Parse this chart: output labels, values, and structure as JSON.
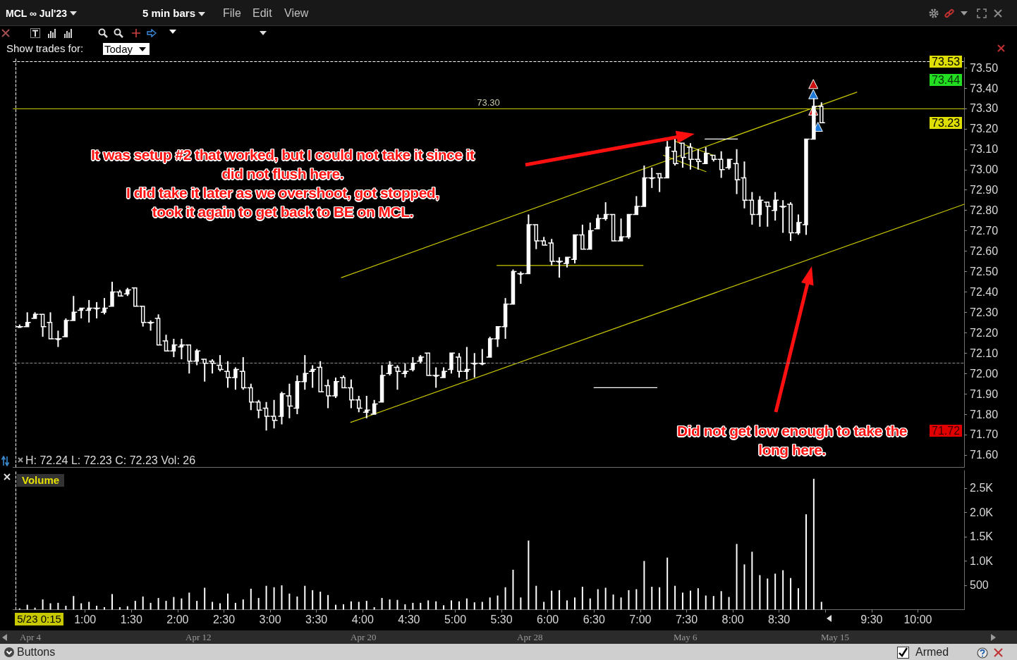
{
  "chart_data": [
    {
      "type": "candlestick",
      "title": "MCL ∞ Jul'23",
      "subtitle": "5 min bars",
      "x": [
        0.292,
        0.375,
        0.458,
        0.542,
        0.625,
        0.708,
        0.792,
        0.875,
        0.958,
        1.042,
        1.125,
        1.208,
        1.292,
        1.375,
        1.458,
        1.542,
        1.625,
        1.708,
        1.792,
        1.875,
        1.958,
        2.042,
        2.125,
        2.208,
        2.292,
        2.375,
        2.458,
        2.542,
        2.625,
        2.708,
        2.792,
        2.875,
        2.958,
        3.042,
        3.125,
        3.208,
        3.292,
        3.375,
        3.458,
        3.542,
        3.625,
        3.708,
        3.792,
        3.875,
        3.958,
        4.042,
        4.125,
        4.208,
        4.292,
        4.375,
        4.458,
        4.542,
        4.625,
        4.708,
        4.792,
        4.875,
        4.958,
        5.042,
        5.125,
        5.208,
        5.292,
        5.375,
        5.458,
        5.542,
        5.625,
        5.708,
        5.792,
        5.875,
        5.958,
        6.042,
        6.125,
        6.208,
        6.292,
        6.375,
        6.458,
        6.542,
        6.625,
        6.708,
        6.792,
        6.875,
        6.958,
        7.042,
        7.125,
        7.208,
        7.292,
        7.375,
        7.458,
        7.542,
        7.625,
        7.708,
        7.792,
        7.875,
        7.958,
        8.042,
        8.125,
        8.208,
        8.292,
        8.375,
        8.458,
        8.542,
        8.625,
        8.708,
        8.792,
        8.875,
        8.958
      ],
      "ohlc": [
        [
          72.23,
          72.24,
          72.23,
          72.23
        ],
        [
          72.23,
          72.3,
          72.23,
          72.25
        ],
        [
          72.27,
          72.3,
          72.27,
          72.29
        ],
        [
          72.29,
          72.29,
          72.18,
          72.23
        ],
        [
          72.25,
          72.3,
          72.17,
          72.17
        ],
        [
          72.17,
          72.21,
          72.13,
          72.17
        ],
        [
          72.18,
          72.27,
          72.18,
          72.26
        ],
        [
          72.26,
          72.38,
          72.26,
          72.3
        ],
        [
          72.31,
          72.32,
          72.27,
          72.32
        ],
        [
          72.31,
          72.36,
          72.25,
          72.32
        ],
        [
          72.32,
          72.35,
          72.27,
          72.32
        ],
        [
          72.3,
          72.37,
          72.29,
          72.32
        ],
        [
          72.33,
          72.45,
          72.33,
          72.4
        ],
        [
          72.4,
          72.41,
          72.38,
          72.38
        ],
        [
          72.39,
          72.42,
          72.38,
          72.41
        ],
        [
          72.42,
          72.42,
          72.33,
          72.33
        ],
        [
          72.33,
          72.33,
          72.23,
          72.25
        ],
        [
          72.25,
          72.26,
          72.21,
          72.25
        ],
        [
          72.27,
          72.29,
          72.14,
          72.14
        ],
        [
          72.16,
          72.19,
          72.11,
          72.11
        ],
        [
          72.11,
          72.17,
          72.08,
          72.14
        ],
        [
          72.13,
          72.17,
          72.07,
          72.14
        ],
        [
          72.14,
          72.14,
          72.0,
          72.06
        ],
        [
          72.06,
          72.12,
          72.04,
          72.11
        ],
        [
          72.07,
          72.07,
          71.96,
          72.05
        ],
        [
          72.06,
          72.07,
          72.0,
          72.05
        ],
        [
          72.04,
          72.09,
          72.01,
          72.02
        ],
        [
          72.01,
          72.06,
          71.93,
          71.98
        ],
        [
          71.98,
          72.03,
          71.92,
          72.02
        ],
        [
          72.01,
          72.08,
          71.92,
          71.93
        ],
        [
          71.93,
          71.95,
          71.82,
          71.86
        ],
        [
          71.86,
          71.87,
          71.78,
          71.82
        ],
        [
          71.83,
          71.86,
          71.72,
          71.79
        ],
        [
          71.79,
          71.87,
          71.73,
          71.77
        ],
        [
          71.79,
          71.91,
          71.75,
          71.9
        ],
        [
          71.89,
          71.95,
          71.78,
          71.84
        ],
        [
          71.83,
          71.99,
          71.8,
          71.96
        ],
        [
          71.96,
          72.09,
          71.92,
          72.0
        ],
        [
          72.01,
          72.04,
          71.93,
          72.02
        ],
        [
          72.03,
          72.06,
          71.91,
          71.91
        ],
        [
          71.94,
          71.97,
          71.83,
          71.89
        ],
        [
          71.89,
          71.98,
          71.88,
          71.96
        ],
        [
          71.98,
          71.99,
          71.93,
          71.93
        ],
        [
          71.93,
          71.97,
          71.83,
          71.87
        ],
        [
          71.87,
          71.89,
          71.81,
          71.83
        ],
        [
          71.81,
          71.89,
          71.78,
          71.82
        ],
        [
          71.8,
          71.87,
          71.8,
          71.85
        ],
        [
          71.86,
          72.04,
          71.86,
          71.99
        ],
        [
          72.0,
          72.06,
          71.99,
          72.04
        ],
        [
          72.03,
          72.04,
          71.92,
          72.01
        ],
        [
          72.0,
          72.05,
          71.98,
          72.01
        ],
        [
          72.02,
          72.08,
          72.01,
          72.05
        ],
        [
          72.06,
          72.09,
          72.05,
          72.08
        ],
        [
          72.1,
          72.1,
          71.99,
          71.99
        ],
        [
          71.99,
          72.03,
          71.93,
          71.99
        ],
        [
          71.98,
          72.03,
          71.98,
          72.01
        ],
        [
          72.02,
          72.1,
          72.0,
          72.1
        ],
        [
          72.08,
          72.1,
          71.98,
          72.01
        ],
        [
          72.01,
          72.13,
          71.97,
          72.02
        ],
        [
          72.05,
          72.1,
          71.98,
          72.05
        ],
        [
          72.05,
          72.12,
          72.04,
          72.05
        ],
        [
          72.08,
          72.18,
          72.08,
          72.17
        ],
        [
          72.17,
          72.23,
          72.13,
          72.23
        ],
        [
          72.23,
          72.37,
          72.17,
          72.34
        ],
        [
          72.34,
          72.51,
          72.34,
          72.5
        ],
        [
          72.49,
          72.5,
          72.44,
          72.49
        ],
        [
          72.49,
          72.78,
          72.49,
          72.73
        ],
        [
          72.73,
          72.73,
          72.61,
          72.65
        ],
        [
          72.65,
          72.67,
          72.63,
          72.63
        ],
        [
          72.64,
          72.66,
          72.53,
          72.55
        ],
        [
          72.55,
          72.57,
          72.47,
          72.55
        ],
        [
          72.54,
          72.57,
          72.52,
          72.57
        ],
        [
          72.56,
          72.68,
          72.54,
          72.68
        ],
        [
          72.68,
          72.73,
          72.61,
          72.61
        ],
        [
          72.61,
          72.74,
          72.61,
          72.7
        ],
        [
          72.71,
          72.78,
          72.71,
          72.76
        ],
        [
          72.76,
          72.84,
          72.75,
          72.78
        ],
        [
          72.78,
          72.78,
          72.65,
          72.65
        ],
        [
          72.65,
          72.76,
          72.65,
          72.67
        ],
        [
          72.67,
          72.78,
          72.66,
          72.78
        ],
        [
          72.78,
          72.87,
          72.78,
          72.82
        ],
        [
          72.82,
          73.02,
          72.82,
          72.96
        ],
        [
          72.96,
          73.01,
          72.91,
          72.96
        ],
        [
          72.98,
          72.98,
          72.89,
          72.96
        ],
        [
          72.96,
          73.14,
          72.96,
          73.11
        ],
        [
          73.09,
          73.15,
          73.02,
          73.03
        ],
        [
          73.13,
          73.13,
          73.01,
          73.06
        ],
        [
          73.11,
          73.13,
          73.0,
          73.05
        ],
        [
          73.05,
          73.1,
          73.0,
          73.04
        ],
        [
          73.03,
          73.11,
          73.03,
          73.08
        ],
        [
          73.07,
          73.07,
          73.04,
          73.05
        ],
        [
          73.05,
          73.09,
          72.96,
          73.0
        ],
        [
          73.01,
          73.05,
          73.0,
          73.05
        ],
        [
          73.03,
          73.1,
          72.88,
          72.95
        ],
        [
          72.96,
          73.04,
          72.81,
          72.85
        ],
        [
          72.85,
          72.89,
          72.73,
          72.78
        ],
        [
          72.78,
          72.87,
          72.72,
          72.85
        ],
        [
          72.84,
          72.84,
          72.72,
          72.82
        ],
        [
          72.8,
          72.89,
          72.75,
          72.85
        ],
        [
          72.82,
          72.85,
          72.69,
          72.82
        ],
        [
          72.83,
          72.84,
          72.65,
          72.69
        ],
        [
          72.69,
          72.78,
          72.68,
          72.74
        ],
        [
          72.73,
          73.15,
          72.68,
          73.15
        ],
        [
          73.15,
          73.35,
          73.15,
          73.31
        ],
        [
          73.31,
          73.33,
          73.23,
          73.23
        ]
      ],
      "color": "#ffffff",
      "series": [
        {
          "type": "line",
          "x": [
            3.77,
            9.34
          ],
          "values": [
            72.47,
            73.38
          ],
          "color": "#c8c800"
        },
        {
          "type": "line",
          "x": [
            3.87,
            10.5
          ],
          "values": [
            71.76,
            72.83
          ],
          "color": "#c8c800"
        },
        {
          "type": "line",
          "x": [
            7.25,
            7.71
          ],
          "values": [
            73.07,
            72.99
          ],
          "color": "#c8c800"
        },
        {
          "type": "line",
          "x": [
            7.37,
            7.79
          ],
          "values": [
            73.14,
            73.07
          ],
          "color": "#c8c800"
        },
        {
          "type": "line",
          "x": [
            5.45,
            7.03
          ],
          "values": [
            72.53,
            72.53
          ],
          "color": "#c8c800"
        },
        {
          "type": "line",
          "x": [
            6.5,
            7.18
          ],
          "values": [
            71.93,
            71.93
          ],
          "color": "#ffffff"
        },
        {
          "type": "line",
          "x": [
            7.7,
            8.05
          ],
          "values": [
            73.15,
            73.15
          ],
          "color": "#ffffff"
        },
        {
          "type": "scatter",
          "x": [
            8.87,
            8.87
          ],
          "values": [
            73.42,
            73.29
          ],
          "color": "#cc1010",
          "marker": "triangle"
        },
        {
          "type": "scatter",
          "x": [
            8.87,
            8.92
          ],
          "values": [
            73.37,
            73.21
          ],
          "color": "#1e78d6",
          "marker": "triangle"
        }
      ],
      "xlim": [
        0.22,
        10.5
      ],
      "ylim": [
        71.54,
        73.55
      ],
      "yticks": [
        {
          "value": 71.6,
          "label": "71.60"
        },
        {
          "value": 71.7,
          "label": "71.70"
        },
        {
          "value": 71.8,
          "label": "71.80"
        },
        {
          "value": 71.9,
          "label": "71.90"
        },
        {
          "value": 72.0,
          "label": "72.00"
        },
        {
          "value": 72.1,
          "label": "72.10"
        },
        {
          "value": 72.2,
          "label": "72.20"
        },
        {
          "value": 72.3,
          "label": "72.30"
        },
        {
          "value": 72.4,
          "label": "72.40"
        },
        {
          "value": 72.5,
          "label": "72.50"
        },
        {
          "value": 72.6,
          "label": "72.60"
        },
        {
          "value": 72.7,
          "label": "72.70"
        },
        {
          "value": 72.8,
          "label": "72.80"
        },
        {
          "value": 72.9,
          "label": "72.90"
        },
        {
          "value": 73.0,
          "label": "73.00"
        },
        {
          "value": 73.1,
          "label": "73.10"
        },
        {
          "value": 73.2,
          "label": "73.20"
        },
        {
          "value": 73.3,
          "label": "73.30"
        },
        {
          "value": 73.4,
          "label": "73.40"
        },
        {
          "value": 73.5,
          "label": "73.50"
        }
      ],
      "tick_labels": "y",
      "ref_lines": [
        {
          "axis": "y",
          "value": 73.3,
          "label": "73.30",
          "color": "#c8c800"
        },
        {
          "axis": "y",
          "value": 73.53,
          "label": "73.53",
          "color": "#ffffff",
          "line_style": "dashed"
        },
        {
          "axis": "y",
          "value": 72.05,
          "color": "#8a8a8a",
          "line_style": "dashed"
        },
        {
          "axis": "x",
          "value": 0.25,
          "color": "#ffffff",
          "line_style": "dashed"
        }
      ],
      "annotations": [
        "File",
        "Edit",
        "View",
        "Show trades for:",
        "Today",
        "H: 72.24 L: 72.23 C: 72.23 Vol: 26",
        "It was setup #2 that worked, but I could not take it since it\ndid not flush here.\nI did take it later as we overshoot, got stopped,\ntook it again to get back to BE on MCL.",
        "Did not get low enough to take the\nlong here.",
        "73.44",
        "73.23",
        "71.72"
      ]
    },
    {
      "type": "bar",
      "title": "Volume",
      "x": [
        0.292,
        0.375,
        0.458,
        0.542,
        0.625,
        0.708,
        0.792,
        0.875,
        0.958,
        1.042,
        1.125,
        1.208,
        1.292,
        1.375,
        1.458,
        1.542,
        1.625,
        1.708,
        1.792,
        1.875,
        1.958,
        2.042,
        2.125,
        2.208,
        2.292,
        2.375,
        2.458,
        2.542,
        2.625,
        2.708,
        2.792,
        2.875,
        2.958,
        3.042,
        3.125,
        3.208,
        3.292,
        3.375,
        3.458,
        3.542,
        3.625,
        3.708,
        3.792,
        3.875,
        3.958,
        4.042,
        4.125,
        4.208,
        4.292,
        4.375,
        4.458,
        4.542,
        4.625,
        4.708,
        4.792,
        4.875,
        4.958,
        5.042,
        5.125,
        5.208,
        5.292,
        5.375,
        5.458,
        5.542,
        5.625,
        5.708,
        5.792,
        5.875,
        5.958,
        6.042,
        6.125,
        6.208,
        6.292,
        6.375,
        6.458,
        6.542,
        6.625,
        6.708,
        6.792,
        6.875,
        6.958,
        7.042,
        7.125,
        7.208,
        7.292,
        7.375,
        7.458,
        7.542,
        7.625,
        7.708,
        7.792,
        7.875,
        7.958,
        8.042,
        8.125,
        8.208,
        8.292,
        8.375,
        8.458,
        8.542,
        8.625,
        8.708,
        8.792,
        8.875,
        8.958
      ],
      "values": [
        26,
        100,
        40,
        210,
        130,
        140,
        80,
        280,
        130,
        160,
        80,
        50,
        320,
        50,
        70,
        180,
        270,
        140,
        240,
        180,
        260,
        230,
        350,
        180,
        450,
        160,
        130,
        330,
        140,
        210,
        430,
        240,
        490,
        460,
        500,
        330,
        270,
        490,
        400,
        370,
        300,
        100,
        110,
        170,
        160,
        180,
        50,
        240,
        210,
        200,
        110,
        140,
        140,
        190,
        170,
        90,
        190,
        170,
        230,
        150,
        160,
        250,
        290,
        460,
        820,
        250,
        1420,
        490,
        160,
        390,
        400,
        190,
        250,
        470,
        230,
        420,
        450,
        310,
        250,
        400,
        420,
        1000,
        470,
        460,
        1070,
        490,
        350,
        390,
        440,
        290,
        280,
        380,
        260,
        1350,
        930,
        1190,
        710,
        640,
        740,
        810,
        650,
        440,
        1960,
        2690,
        160
      ],
      "color": "#ffffff",
      "xlim": [
        0.22,
        10.5
      ],
      "xticks": [
        {
          "value": 1,
          "label": "1:00"
        },
        {
          "value": 1.5,
          "label": "1:30"
        },
        {
          "value": 2,
          "label": "2:00"
        },
        {
          "value": 2.5,
          "label": "2:30"
        },
        {
          "value": 3,
          "label": "3:00"
        },
        {
          "value": 3.5,
          "label": "3:30"
        },
        {
          "value": 4,
          "label": "4:00"
        },
        {
          "value": 4.5,
          "label": "4:30"
        },
        {
          "value": 5,
          "label": "5:00"
        },
        {
          "value": 5.5,
          "label": "5:30"
        },
        {
          "value": 6,
          "label": "6:00"
        },
        {
          "value": 6.5,
          "label": "6:30"
        },
        {
          "value": 7,
          "label": "7:00"
        },
        {
          "value": 7.5,
          "label": "7:30"
        },
        {
          "value": 8,
          "label": "8:00"
        },
        {
          "value": 8.5,
          "label": "8:30"
        },
        {
          "value": 9,
          "label": null
        },
        {
          "value": 9.5,
          "label": "9:30"
        },
        {
          "value": 10,
          "label": "10:00"
        }
      ],
      "ylim": [
        0,
        2860
      ],
      "yticks": [
        500,
        {
          "value": 1000,
          "label": "1.0K"
        },
        {
          "value": 1500,
          "label": "1.5K"
        },
        {
          "value": 2000,
          "label": "2.0K"
        },
        {
          "value": 2500,
          "label": "2.5K"
        }
      ],
      "ref_lines": [
        {
          "axis": "x",
          "value": 0.25,
          "label": "5/23 0:15",
          "color": "#ffffff",
          "line_style": "dashed"
        }
      ],
      "annotations": [
        "Apr 4",
        "Apr 12",
        "Apr 20",
        "Apr 28",
        "May 6",
        "May 15",
        "Buttons",
        "Armed"
      ]
    }
  ]
}
